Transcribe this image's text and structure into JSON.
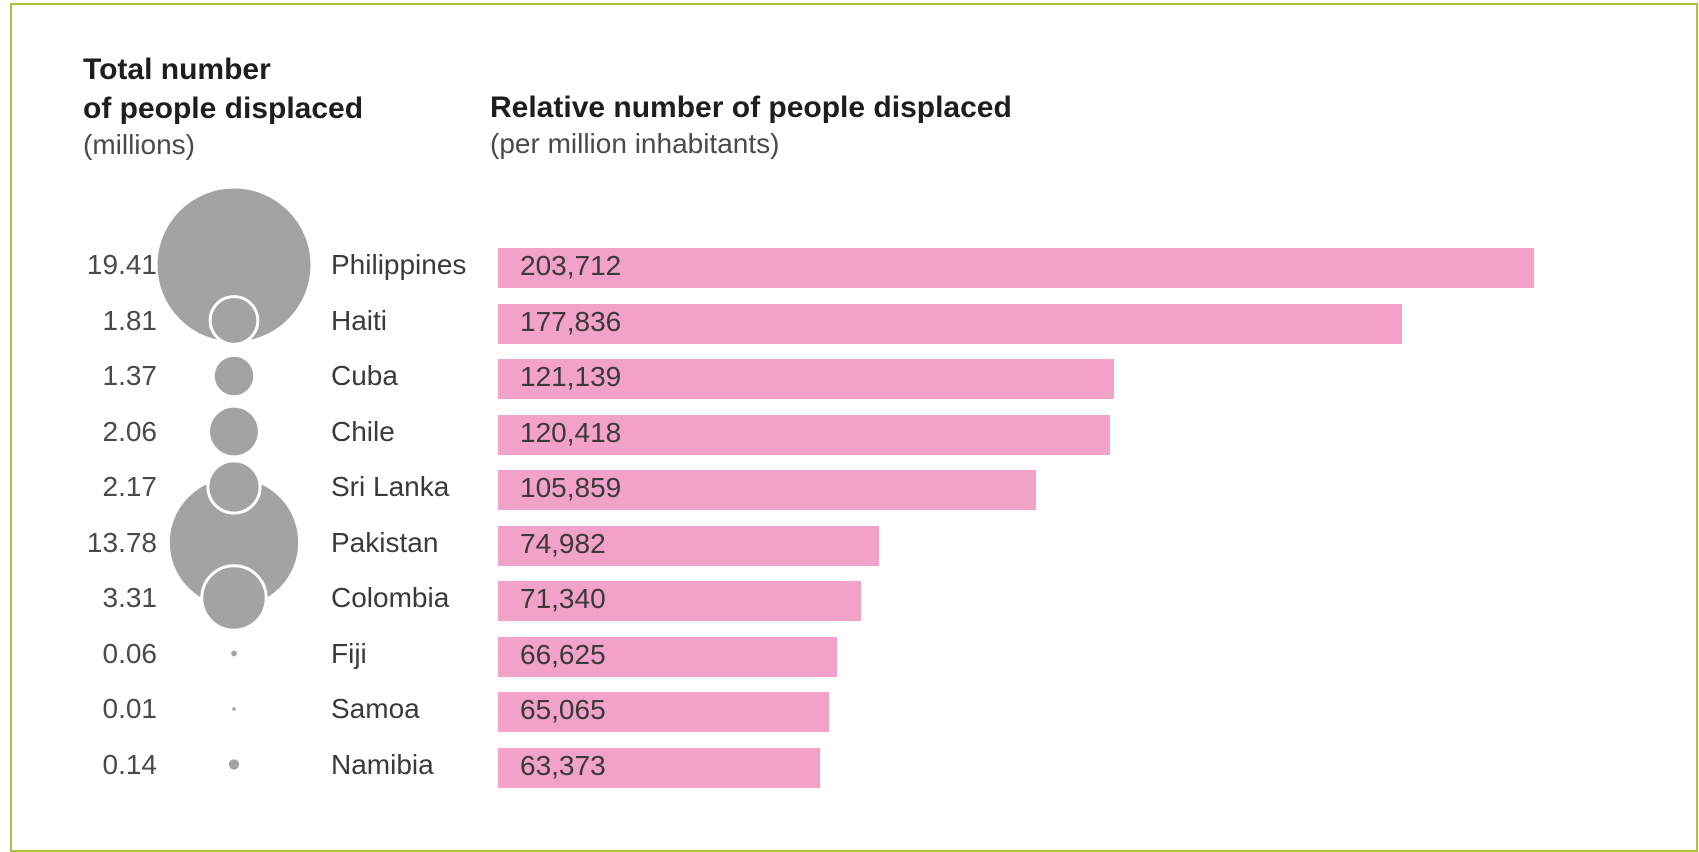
{
  "header_left": {
    "title_line1": "Total number",
    "title_line2": "of people displaced",
    "unit": "(millions)"
  },
  "header_right": {
    "title": "Relative number of people displaced",
    "unit": "(per million inhabitants)"
  },
  "colors": {
    "bar": "#f2a2c8",
    "bubble": "#a3a3a3",
    "bubble_outline": "#ffffff",
    "frame": "#a8c23a"
  },
  "chart_data": [
    {
      "type": "bubble",
      "title": "Total number of people displaced",
      "unit": "(millions)",
      "categories": [
        "Philippines",
        "Haiti",
        "Cuba",
        "Chile",
        "Sri Lanka",
        "Pakistan",
        "Colombia",
        "Fiji",
        "Samoa",
        "Namibia"
      ],
      "values": [
        19.41,
        1.81,
        1.37,
        2.06,
        2.17,
        13.78,
        3.31,
        0.06,
        0.01,
        0.14
      ],
      "labels": [
        "19.41",
        "1.81",
        "1.37",
        "2.06",
        "2.17",
        "13.78",
        "3.31",
        "0.06",
        "0.01",
        "0.14"
      ]
    },
    {
      "type": "bar",
      "orientation": "horizontal",
      "title": "Relative number of people displaced",
      "unit": "(per million inhabitants)",
      "categories": [
        "Philippines",
        "Haiti",
        "Cuba",
        "Chile",
        "Sri Lanka",
        "Pakistan",
        "Colombia",
        "Fiji",
        "Samoa",
        "Namibia"
      ],
      "values": [
        203712,
        177836,
        121139,
        120418,
        105859,
        74982,
        71340,
        66625,
        65065,
        63373
      ],
      "labels": [
        "203,712",
        "177,836",
        "121,139",
        "120,418",
        "105,859",
        "74,982",
        "71,340",
        "66,625",
        "65,065",
        "63,373"
      ]
    }
  ]
}
